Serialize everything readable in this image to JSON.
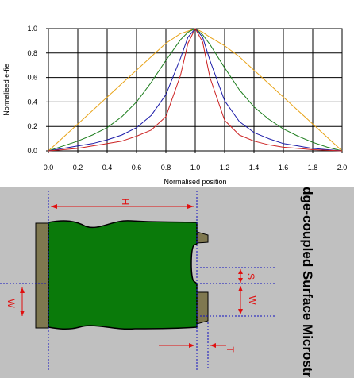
{
  "chart_data": {
    "type": "line",
    "xlabel": "Normalised position",
    "ylabel": "Normalised e-fie",
    "xlim": [
      0.0,
      2.0
    ],
    "ylim": [
      0.0,
      1.0
    ],
    "xticks": [
      "0.0",
      "0.2",
      "0.4",
      "0.6",
      "0.8",
      "1.0",
      "1.2",
      "1.4",
      "1.6",
      "1.8",
      "2.0"
    ],
    "yticks": [
      "0.0",
      "0.2",
      "0.4",
      "0.6",
      "0.8",
      "1.0"
    ],
    "grid": true,
    "legend": "none",
    "x": [
      0.0,
      0.1,
      0.2,
      0.3,
      0.4,
      0.5,
      0.6,
      0.7,
      0.8,
      0.9,
      0.95,
      1.0,
      1.05,
      1.1,
      1.2,
      1.3,
      1.4,
      1.5,
      1.6,
      1.7,
      1.8,
      1.9,
      2.0
    ],
    "series": [
      {
        "color": "#e8a317",
        "values": [
          0.0,
          0.11,
          0.22,
          0.33,
          0.44,
          0.55,
          0.66,
          0.77,
          0.88,
          0.96,
          0.98,
          1.0,
          0.97,
          0.93,
          0.86,
          0.77,
          0.66,
          0.55,
          0.44,
          0.33,
          0.22,
          0.11,
          0.0
        ]
      },
      {
        "color": "#1e7e1e",
        "values": [
          0.0,
          0.04,
          0.08,
          0.13,
          0.19,
          0.28,
          0.4,
          0.56,
          0.74,
          0.91,
          0.97,
          1.0,
          0.95,
          0.87,
          0.68,
          0.5,
          0.36,
          0.26,
          0.18,
          0.12,
          0.07,
          0.03,
          0.0
        ]
      },
      {
        "color": "#1a1aa8",
        "values": [
          0.0,
          0.02,
          0.04,
          0.06,
          0.09,
          0.13,
          0.19,
          0.29,
          0.46,
          0.76,
          0.93,
          1.0,
          0.93,
          0.74,
          0.41,
          0.24,
          0.15,
          0.1,
          0.06,
          0.04,
          0.02,
          0.01,
          0.0
        ]
      },
      {
        "color": "#cc2222",
        "values": [
          0.0,
          0.01,
          0.02,
          0.04,
          0.06,
          0.08,
          0.12,
          0.17,
          0.28,
          0.62,
          0.88,
          1.0,
          0.89,
          0.6,
          0.25,
          0.13,
          0.08,
          0.05,
          0.03,
          0.02,
          0.01,
          0.005,
          0.0
        ]
      }
    ]
  },
  "diagram": {
    "title": "Edge-coupled Surface Microstrip",
    "dim_H": "H",
    "dim_W_left": "W",
    "dim_S": "S",
    "dim_W_right": "W",
    "dim_T": "T",
    "colors": {
      "background": "#c0c0c0",
      "dielectric": "#0a7a0a",
      "conductor": "#7f7850",
      "dimension": "#e01010",
      "guide": "#1010c0"
    }
  }
}
